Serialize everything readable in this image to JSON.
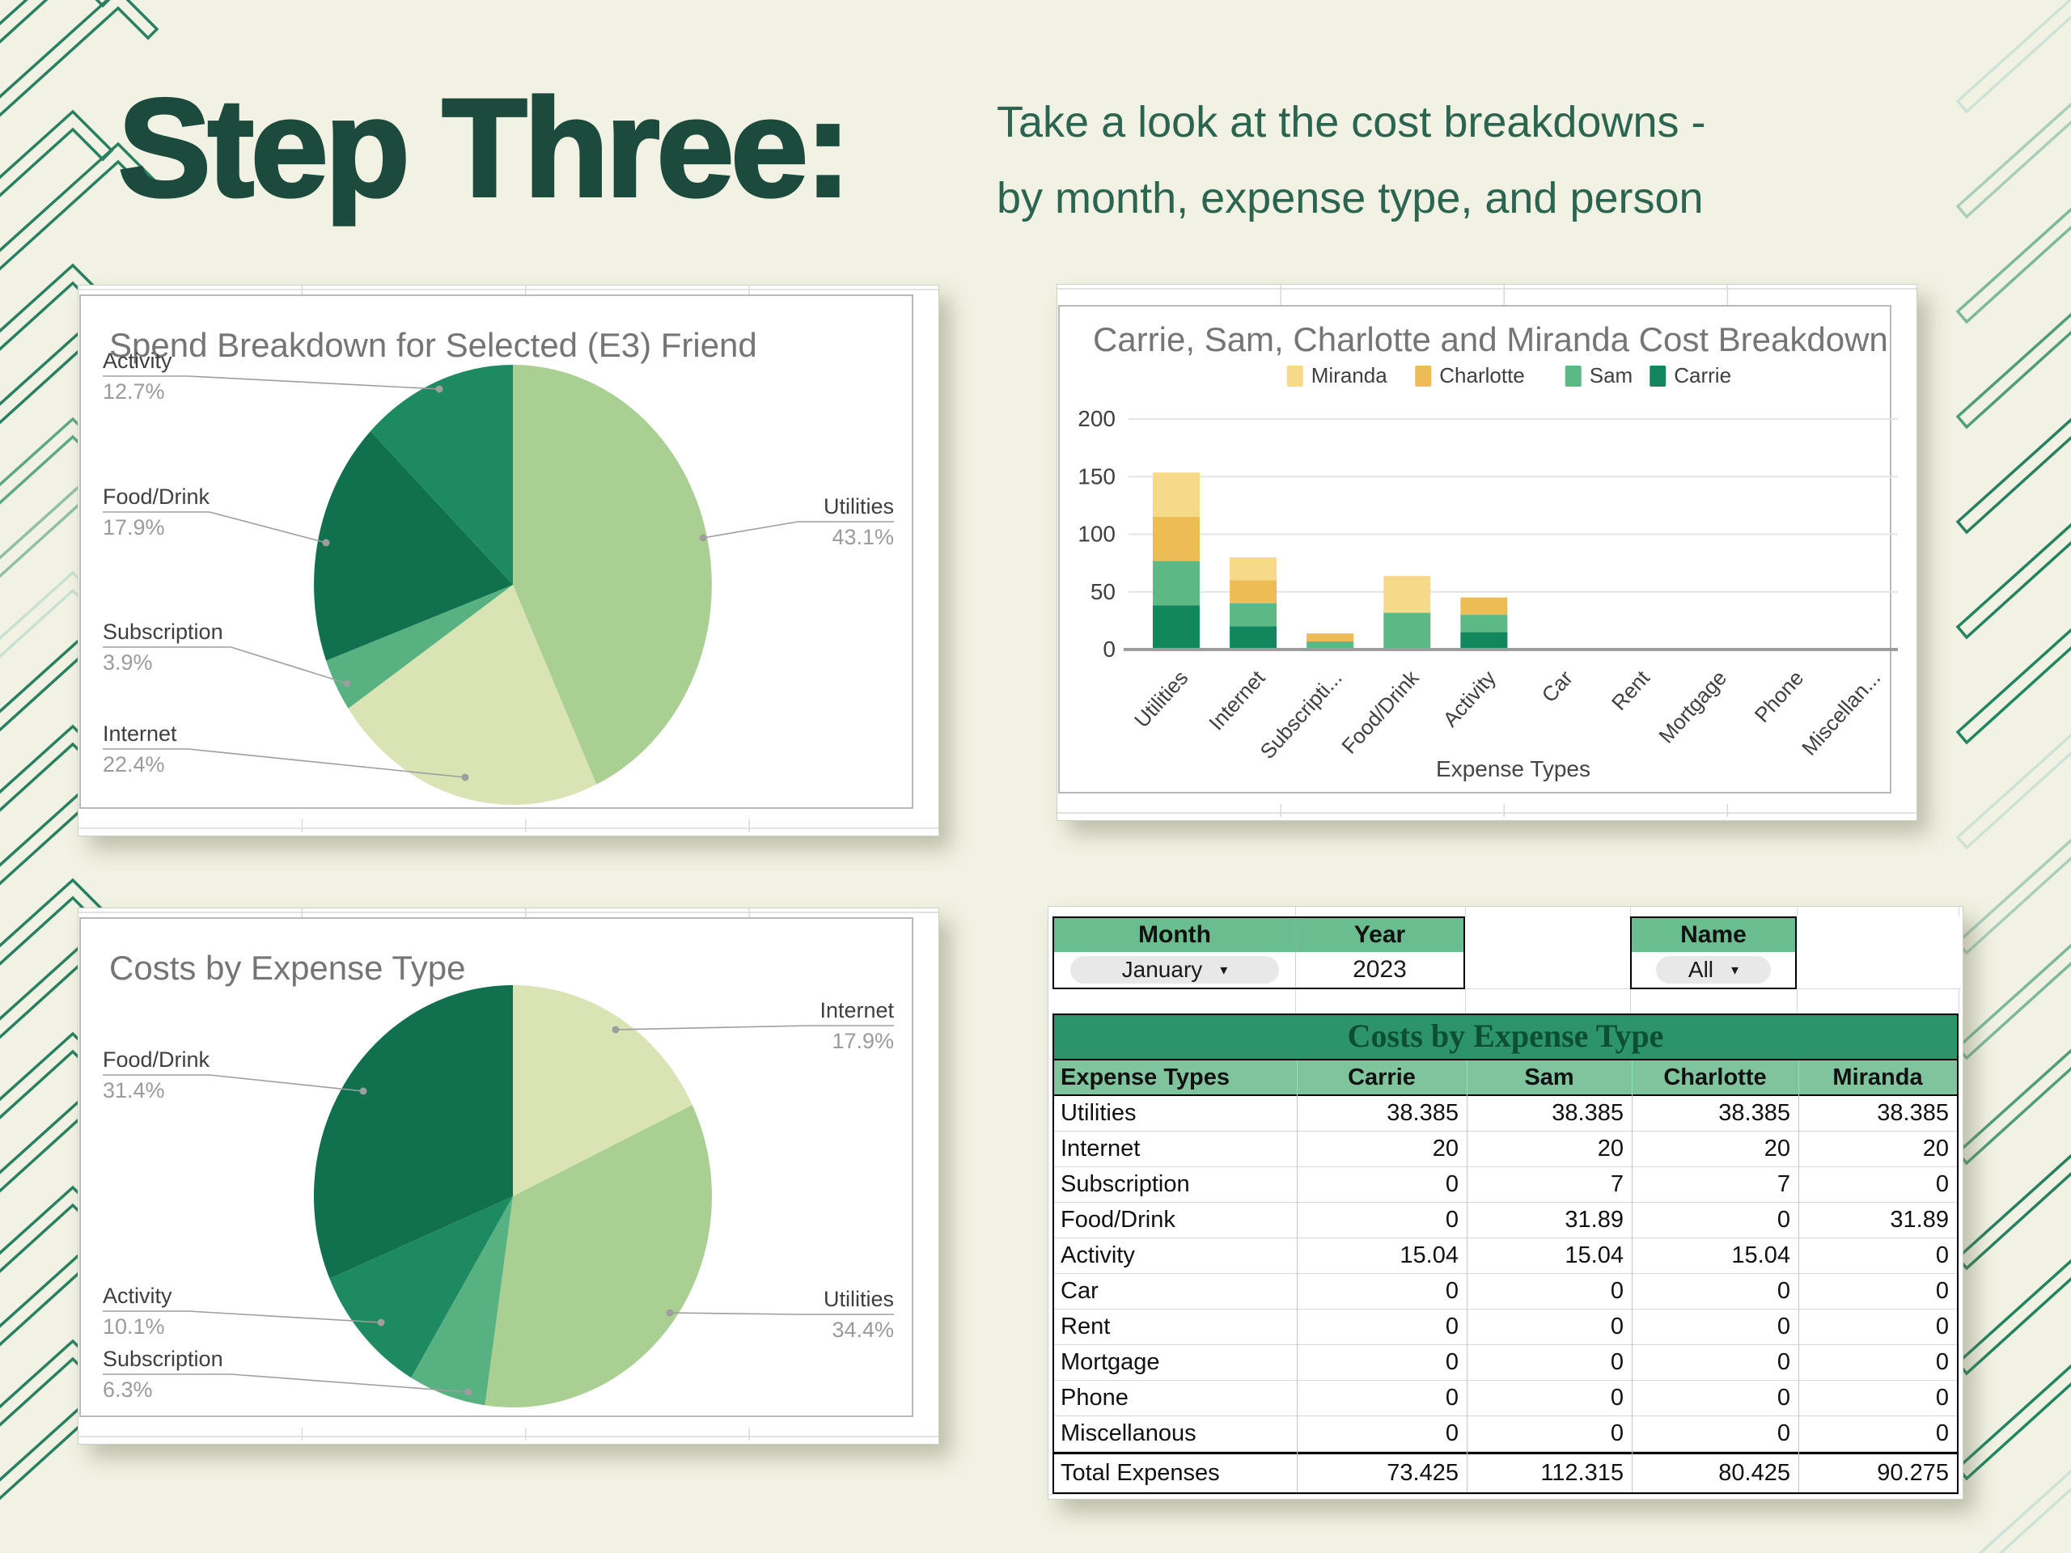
{
  "slide": {
    "title": "Step Three:",
    "subtitle_line1": "Take a look at the cost breakdowns -",
    "subtitle_line2": "by month, expense type, and person"
  },
  "colors": {
    "background": "#f1f2e3",
    "title_green": "#1c4b3d",
    "subtitle_green": "#2b6550",
    "chart_title_gray": "#757575",
    "axis_text": "#3f3f3f",
    "pct_gray": "#9b9b9b",
    "decor_dark": "#27805f",
    "decor_light": "#c9e0d2",
    "table_banner_bg": "#2d9368",
    "table_header_bg": "#80c49e",
    "filter_header_bg": "#6abd8e"
  },
  "chart_data": [
    {
      "id": "spend-breakdown-pie",
      "type": "pie",
      "title": "Spend Breakdown for Selected (E3) Friend",
      "slices": [
        {
          "label": "Utilities",
          "value": 43.1,
          "pct_label": "43.1%",
          "color": "#a9cf93"
        },
        {
          "label": "Internet",
          "value": 22.4,
          "pct_label": "22.4%",
          "color": "#d9e3b4"
        },
        {
          "label": "Subscription",
          "value": 3.9,
          "pct_label": "3.9%",
          "color": "#57b181"
        },
        {
          "label": "Food/Drink",
          "value": 17.9,
          "pct_label": "17.9%",
          "color": "#11704e"
        },
        {
          "label": "Activity",
          "value": 12.7,
          "pct_label": "12.7%",
          "color": "#1d8a62"
        }
      ]
    },
    {
      "id": "people-cost-breakdown-bar",
      "type": "bar",
      "stacked": true,
      "title": "Carrie, Sam, Charlotte and Miranda Cost Breakdown",
      "xlabel": "Expense Types",
      "categories": [
        "Utilities",
        "Internet",
        "Subscripti...",
        "Food/Drink",
        "Activity",
        "Car",
        "Rent",
        "Mortgage",
        "Phone",
        "Miscellan..."
      ],
      "yticks": [
        0,
        50,
        100,
        150,
        200
      ],
      "ylim": [
        0,
        220
      ],
      "legend_order": [
        "Miranda",
        "Charlotte",
        "Sam",
        "Carrie"
      ],
      "series": [
        {
          "name": "Carrie",
          "color": "#12875e",
          "values": [
            38.385,
            20,
            0,
            0,
            15.04,
            0,
            0,
            0,
            0,
            0
          ]
        },
        {
          "name": "Sam",
          "color": "#5cb885",
          "values": [
            38.385,
            20,
            7,
            31.89,
            15.04,
            0,
            0,
            0,
            0,
            0
          ]
        },
        {
          "name": "Charlotte",
          "color": "#eebc55",
          "values": [
            38.385,
            20,
            7,
            0,
            15.04,
            0,
            0,
            0,
            0,
            0
          ]
        },
        {
          "name": "Miranda",
          "color": "#f7d98a",
          "values": [
            38.385,
            20,
            0,
            31.89,
            0,
            0,
            0,
            0,
            0,
            0
          ]
        }
      ]
    },
    {
      "id": "costs-by-expense-type-pie",
      "type": "pie",
      "title": "Costs by Expense Type",
      "slices": [
        {
          "label": "Internet",
          "value": 17.9,
          "pct_label": "17.9%",
          "color": "#d9e3b4"
        },
        {
          "label": "Utilities",
          "value": 34.4,
          "pct_label": "34.4%",
          "color": "#a9cf93"
        },
        {
          "label": "Subscription",
          "value": 6.3,
          "pct_label": "6.3%",
          "color": "#57b181"
        },
        {
          "label": "Activity",
          "value": 10.1,
          "pct_label": "10.1%",
          "color": "#1d8a62"
        },
        {
          "label": "Food/Drink",
          "value": 31.4,
          "pct_label": "31.4%",
          "color": "#11704e"
        }
      ]
    },
    {
      "id": "costs-table",
      "type": "table",
      "filters": {
        "month_label": "Month",
        "month_value": "January",
        "year_label": "Year",
        "year_value": "2023",
        "name_label": "Name",
        "name_value": "All"
      },
      "banner": "Costs by Expense Type",
      "columns": [
        "Expense Types",
        "Carrie",
        "Sam",
        "Charlotte",
        "Miranda"
      ],
      "rows": [
        [
          "Utilities",
          "38.385",
          "38.385",
          "38.385",
          "38.385"
        ],
        [
          "Internet",
          "20",
          "20",
          "20",
          "20"
        ],
        [
          "Subscription",
          "0",
          "7",
          "7",
          "0"
        ],
        [
          "Food/Drink",
          "0",
          "31.89",
          "0",
          "31.89"
        ],
        [
          "Activity",
          "15.04",
          "15.04",
          "15.04",
          "0"
        ],
        [
          "Car",
          "0",
          "0",
          "0",
          "0"
        ],
        [
          "Rent",
          "0",
          "0",
          "0",
          "0"
        ],
        [
          "Mortgage",
          "0",
          "0",
          "0",
          "0"
        ],
        [
          "Phone",
          "0",
          "0",
          "0",
          "0"
        ],
        [
          "Miscellanous",
          "0",
          "0",
          "0",
          "0"
        ]
      ],
      "total_row": [
        "Total Expenses",
        "73.425",
        "112.315",
        "80.425",
        "90.275"
      ]
    }
  ]
}
